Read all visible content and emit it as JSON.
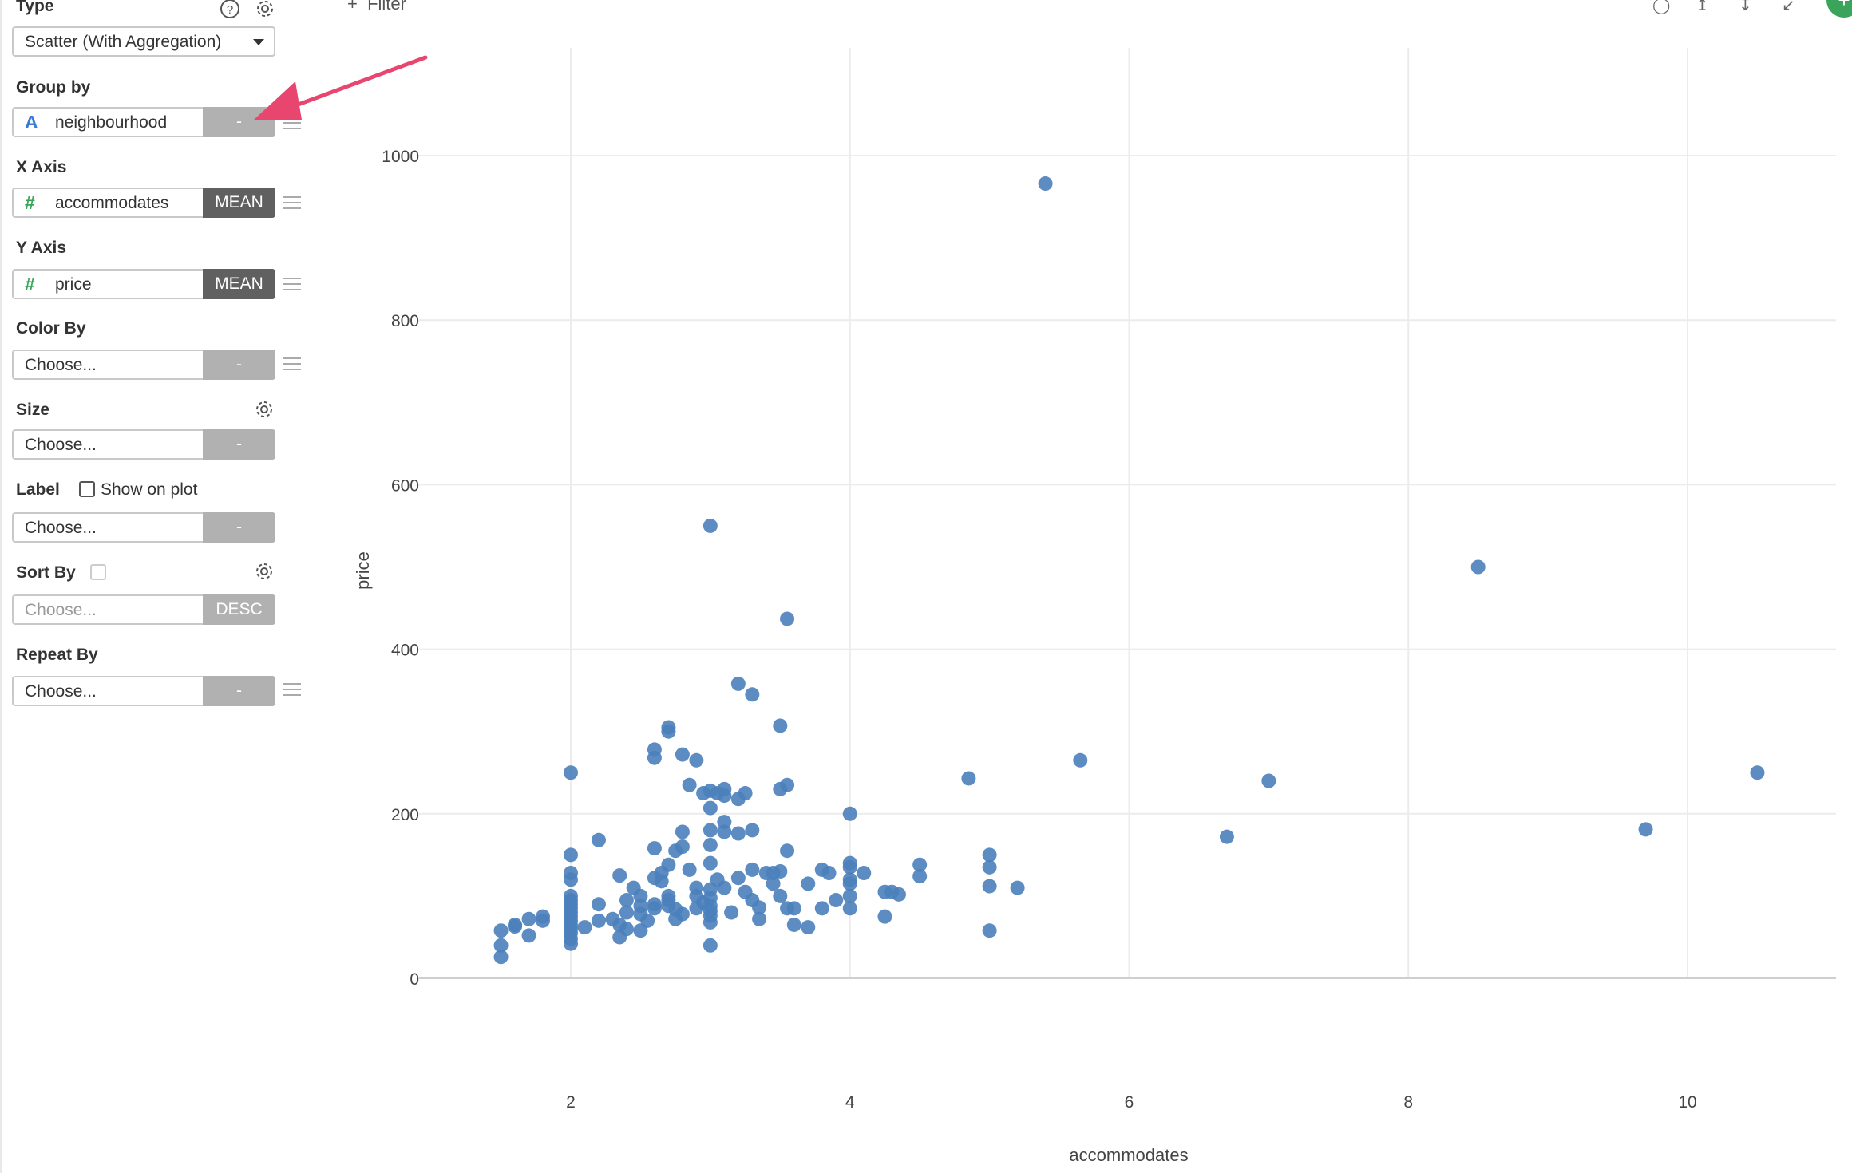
{
  "panel": {
    "type": {
      "label": "Type",
      "value": "Scatter (With Aggregation)",
      "help_icon": "question-circle-icon",
      "settings_icon": "gear-icon"
    },
    "group_by": {
      "label": "Group by",
      "type_icon": "A",
      "value": "neighbourhood",
      "agg": "-"
    },
    "x_axis": {
      "label": "X Axis",
      "type_icon": "#",
      "value": "accommodates",
      "agg": "MEAN"
    },
    "y_axis": {
      "label": "Y Axis",
      "type_icon": "#",
      "value": "price",
      "agg": "MEAN"
    },
    "color_by": {
      "label": "Color By",
      "placeholder": "Choose...",
      "agg": "-"
    },
    "size": {
      "label": "Size",
      "placeholder": "Choose...",
      "agg": "-",
      "settings_icon": "gear-icon"
    },
    "label": {
      "label": "Label",
      "checkbox_label": "Show on plot",
      "placeholder": "Choose...",
      "agg": "-"
    },
    "sort_by": {
      "label": "Sort By",
      "placeholder": "Choose...",
      "order": "DESC",
      "settings_icon": "gear-icon"
    },
    "repeat_by": {
      "label": "Repeat By",
      "placeholder": "Choose...",
      "agg": "-"
    }
  },
  "toolbar": {
    "filter_label": "Filter",
    "icons": [
      "comment-icon",
      "upload-icon",
      "download-icon",
      "expand-icon"
    ],
    "add_icon": "+"
  },
  "colors": {
    "point": "#4a7fbb",
    "grid": "#ececec",
    "accent_arrow": "#e8456f",
    "add_button": "#3aa55a"
  },
  "chart_data": {
    "type": "scatter",
    "title": "",
    "xlabel": "accommodates",
    "ylabel": "price",
    "xlim": [
      1.2,
      11
    ],
    "ylim": [
      -20,
      1100
    ],
    "xticks": [
      2,
      4,
      6,
      8,
      10
    ],
    "yticks": [
      0,
      200,
      400,
      600,
      800,
      1000
    ],
    "grid": true,
    "points": [
      [
        5.4,
        966
      ],
      [
        3.0,
        550
      ],
      [
        3.55,
        437
      ],
      [
        8.5,
        500
      ],
      [
        3.2,
        358
      ],
      [
        3.3,
        345
      ],
      [
        3.5,
        307
      ],
      [
        2.7,
        305
      ],
      [
        2.7,
        300
      ],
      [
        2.6,
        278
      ],
      [
        2.8,
        272
      ],
      [
        2.6,
        268
      ],
      [
        2.9,
        265
      ],
      [
        1.5,
        58
      ],
      [
        1.5,
        40
      ],
      [
        1.5,
        26
      ],
      [
        1.6,
        65
      ],
      [
        1.6,
        63
      ],
      [
        1.7,
        72
      ],
      [
        1.7,
        52
      ],
      [
        1.8,
        75
      ],
      [
        1.8,
        70
      ],
      [
        2.0,
        250
      ],
      [
        2.0,
        150
      ],
      [
        2.0,
        128
      ],
      [
        2.0,
        120
      ],
      [
        2.0,
        100
      ],
      [
        2.0,
        95
      ],
      [
        2.0,
        90
      ],
      [
        2.0,
        85
      ],
      [
        2.0,
        80
      ],
      [
        2.0,
        75
      ],
      [
        2.0,
        70
      ],
      [
        2.0,
        65
      ],
      [
        2.0,
        60
      ],
      [
        2.0,
        55
      ],
      [
        2.0,
        48
      ],
      [
        2.0,
        42
      ],
      [
        2.1,
        62
      ],
      [
        2.2,
        168
      ],
      [
        2.2,
        90
      ],
      [
        2.2,
        70
      ],
      [
        2.3,
        72
      ],
      [
        2.35,
        125
      ],
      [
        2.4,
        95
      ],
      [
        2.4,
        80
      ],
      [
        2.35,
        65
      ],
      [
        2.35,
        50
      ],
      [
        2.4,
        60
      ],
      [
        2.45,
        110
      ],
      [
        2.5,
        100
      ],
      [
        2.5,
        88
      ],
      [
        2.5,
        78
      ],
      [
        2.55,
        70
      ],
      [
        2.5,
        58
      ],
      [
        2.6,
        85
      ],
      [
        2.65,
        128
      ],
      [
        2.65,
        118
      ],
      [
        2.7,
        138
      ],
      [
        2.7,
        100
      ],
      [
        2.75,
        155
      ],
      [
        2.7,
        95
      ],
      [
        2.8,
        178
      ],
      [
        2.8,
        160
      ],
      [
        2.6,
        158
      ],
      [
        2.6,
        122
      ],
      [
        2.6,
        90
      ],
      [
        2.7,
        88
      ],
      [
        2.75,
        84
      ],
      [
        2.75,
        72
      ],
      [
        2.8,
        78
      ],
      [
        2.85,
        235
      ],
      [
        2.85,
        132
      ],
      [
        2.9,
        110
      ],
      [
        2.9,
        100
      ],
      [
        2.95,
        92
      ],
      [
        2.9,
        85
      ],
      [
        2.95,
        225
      ],
      [
        3.0,
        228
      ],
      [
        3.05,
        225
      ],
      [
        3.1,
        230
      ],
      [
        3.1,
        222
      ],
      [
        3.0,
        207
      ],
      [
        3.0,
        180
      ],
      [
        3.0,
        162
      ],
      [
        3.0,
        140
      ],
      [
        3.05,
        120
      ],
      [
        3.0,
        108
      ],
      [
        3.0,
        98
      ],
      [
        3.0,
        88
      ],
      [
        3.0,
        82
      ],
      [
        3.0,
        76
      ],
      [
        3.0,
        68
      ],
      [
        3.0,
        40
      ],
      [
        3.1,
        190
      ],
      [
        3.1,
        178
      ],
      [
        3.1,
        110
      ],
      [
        3.15,
        80
      ],
      [
        3.2,
        218
      ],
      [
        3.25,
        225
      ],
      [
        3.2,
        176
      ],
      [
        3.2,
        122
      ],
      [
        3.25,
        105
      ],
      [
        3.3,
        180
      ],
      [
        3.3,
        132
      ],
      [
        3.3,
        95
      ],
      [
        3.35,
        86
      ],
      [
        3.35,
        72
      ],
      [
        3.4,
        128
      ],
      [
        3.45,
        128
      ],
      [
        3.5,
        230
      ],
      [
        3.5,
        130
      ],
      [
        3.5,
        100
      ],
      [
        3.45,
        115
      ],
      [
        3.55,
        235
      ],
      [
        3.55,
        155
      ],
      [
        3.55,
        85
      ],
      [
        3.6,
        85
      ],
      [
        3.6,
        65
      ],
      [
        3.7,
        115
      ],
      [
        3.7,
        62
      ],
      [
        3.8,
        132
      ],
      [
        3.85,
        128
      ],
      [
        3.8,
        85
      ],
      [
        3.9,
        95
      ],
      [
        4.0,
        200
      ],
      [
        4.0,
        140
      ],
      [
        4.0,
        135
      ],
      [
        4.0,
        120
      ],
      [
        4.0,
        115
      ],
      [
        4.0,
        100
      ],
      [
        4.0,
        85
      ],
      [
        4.1,
        128
      ],
      [
        4.25,
        105
      ],
      [
        4.3,
        105
      ],
      [
        4.35,
        102
      ],
      [
        4.25,
        75
      ],
      [
        4.5,
        138
      ],
      [
        4.5,
        124
      ],
      [
        4.85,
        243
      ],
      [
        5.0,
        150
      ],
      [
        5.0,
        135
      ],
      [
        5.0,
        112
      ],
      [
        5.0,
        58
      ],
      [
        5.2,
        110
      ],
      [
        5.65,
        265
      ],
      [
        6.7,
        172
      ],
      [
        7.0,
        240
      ],
      [
        9.7,
        181
      ],
      [
        10.5,
        250
      ]
    ]
  }
}
